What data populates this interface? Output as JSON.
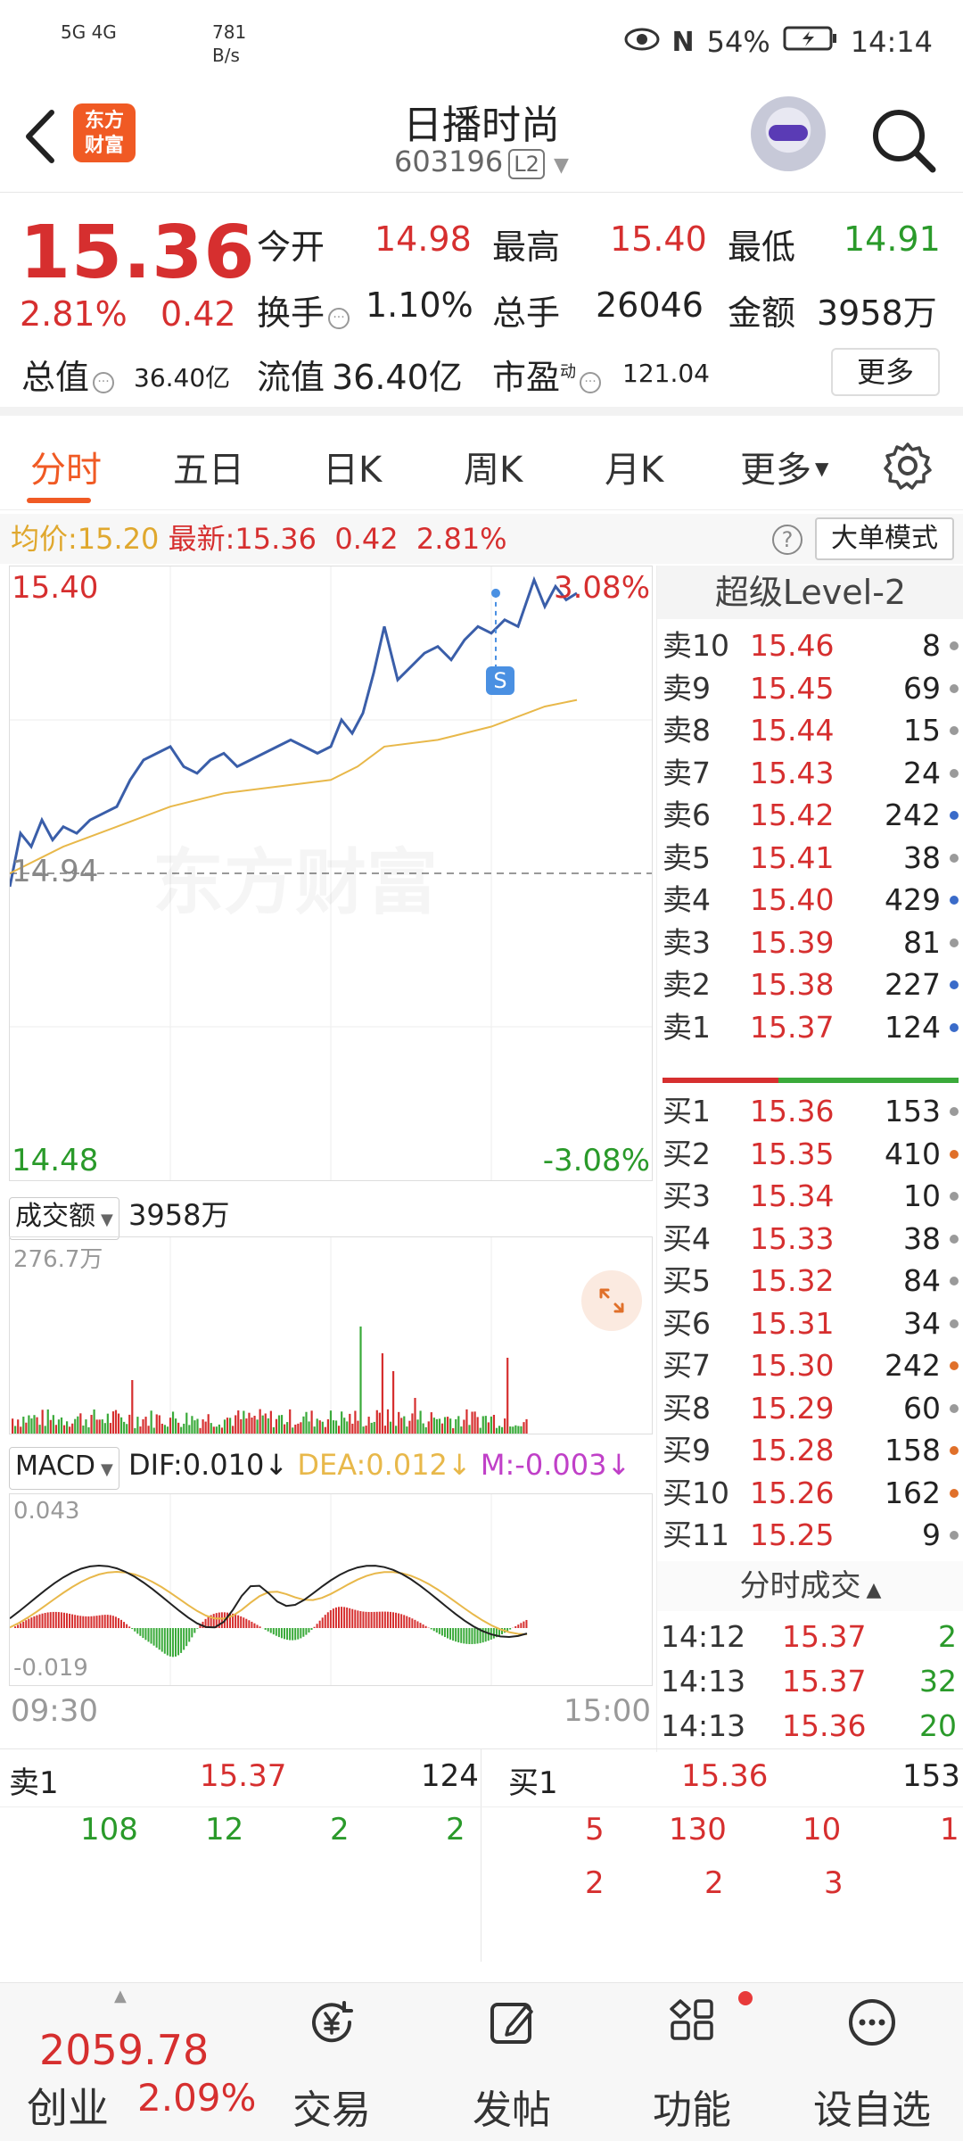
{
  "status_bar": {
    "net_speed": "781",
    "net_unit": "B/s",
    "net_types": "5G 4G",
    "battery": "54%",
    "time": "14:14"
  },
  "header": {
    "logo_text_1": "东方",
    "logo_text_2": "财富",
    "stock_name": "日播时尚",
    "stock_code": "603196",
    "level_badge": "L2"
  },
  "quote": {
    "price": "15.36",
    "change_pct": "2.81%",
    "change_val": "0.42",
    "open_label": "今开",
    "open": "14.98",
    "high_label": "最高",
    "high": "15.40",
    "low_label": "最低",
    "low": "14.91",
    "turnover_label": "换手",
    "turnover": "1.10%",
    "volume_label": "总手",
    "volume": "26046",
    "amount_label": "金额",
    "amount": "3958万",
    "mktcap_label": "总值",
    "mktcap": "36.40亿",
    "float_label": "流值",
    "float_cap": "36.40亿",
    "pe_label": "市盈",
    "pe_sup": "动",
    "pe": "121.04",
    "more_label": "更多"
  },
  "tabs": [
    {
      "label": "分时"
    },
    {
      "label": "五日"
    },
    {
      "label": "日K"
    },
    {
      "label": "周K"
    },
    {
      "label": "月K"
    },
    {
      "label": "更多"
    }
  ],
  "avg_row": {
    "avg_label": "均价:",
    "avg_value": "15.20",
    "latest_label": "最新:",
    "latest_value": "15.36",
    "latest_change": "0.42",
    "latest_pct": "2.81%",
    "help": "?",
    "big_order_label": "大单模式"
  },
  "chart": {
    "top_price": "15.40",
    "top_pct": "3.08%",
    "mid_price": "14.94",
    "bottom_price": "14.48",
    "bottom_pct": "-3.08%",
    "watermark": "东方财富",
    "marker": "S",
    "volume_dropdown": "成交额",
    "volume_total": "3958万",
    "volume_max": "276.7万",
    "macd_dropdown": "MACD",
    "dif": "DIF:0.010",
    "dea": "DEA:0.012",
    "m": "M:-0.003",
    "macd_top": "0.043",
    "macd_bottom": "-0.019",
    "time_start": "09:30",
    "time_end": "15:00"
  },
  "orderbook": {
    "title": "超级Level-2",
    "asks": [
      {
        "label": "卖10",
        "price": "15.46",
        "vol": "8",
        "dot": "#9a9a9a"
      },
      {
        "label": "卖9",
        "price": "15.45",
        "vol": "69",
        "dot": "#9a9a9a"
      },
      {
        "label": "卖8",
        "price": "15.44",
        "vol": "15",
        "dot": "#9a9a9a"
      },
      {
        "label": "卖7",
        "price": "15.43",
        "vol": "24",
        "dot": "#9a9a9a"
      },
      {
        "label": "卖6",
        "price": "15.42",
        "vol": "242",
        "dot": "#3a6bc9"
      },
      {
        "label": "卖5",
        "price": "15.41",
        "vol": "38",
        "dot": "#9a9a9a"
      },
      {
        "label": "卖4",
        "price": "15.40",
        "vol": "429",
        "dot": "#3a6bc9"
      },
      {
        "label": "卖3",
        "price": "15.39",
        "vol": "81",
        "dot": "#9a9a9a"
      },
      {
        "label": "卖2",
        "price": "15.38",
        "vol": "227",
        "dot": "#3a6bc9"
      },
      {
        "label": "卖1",
        "price": "15.37",
        "vol": "124",
        "dot": "#3a6bc9"
      }
    ],
    "bids": [
      {
        "label": "买1",
        "price": "15.36",
        "vol": "153",
        "dot": "#9a9a9a"
      },
      {
        "label": "买2",
        "price": "15.35",
        "vol": "410",
        "dot": "#e0702a"
      },
      {
        "label": "买3",
        "price": "15.34",
        "vol": "10",
        "dot": "#9a9a9a"
      },
      {
        "label": "买4",
        "price": "15.33",
        "vol": "38",
        "dot": "#9a9a9a"
      },
      {
        "label": "买5",
        "price": "15.32",
        "vol": "84",
        "dot": "#9a9a9a"
      },
      {
        "label": "买6",
        "price": "15.31",
        "vol": "34",
        "dot": "#9a9a9a"
      },
      {
        "label": "买7",
        "price": "15.30",
        "vol": "242",
        "dot": "#e0702a"
      },
      {
        "label": "买8",
        "price": "15.29",
        "vol": "60",
        "dot": "#9a9a9a"
      },
      {
        "label": "买9",
        "price": "15.28",
        "vol": "158",
        "dot": "#e0702a"
      },
      {
        "label": "买10",
        "price": "15.26",
        "vol": "162",
        "dot": "#e0702a"
      },
      {
        "label": "买11",
        "price": "15.25",
        "vol": "9",
        "dot": "#9a9a9a"
      }
    ],
    "ticks_title": "分时成交",
    "ticks": [
      {
        "time": "14:12",
        "price": "15.37",
        "vol": "2"
      },
      {
        "time": "14:13",
        "price": "15.37",
        "vol": "32"
      },
      {
        "time": "14:13",
        "price": "15.36",
        "vol": "20"
      }
    ]
  },
  "queue": {
    "sell_label": "卖1",
    "sell_price": "15.37",
    "sell_vol": "124",
    "buy_label": "买1",
    "buy_price": "15.36",
    "buy_vol": "153",
    "sell_orders": [
      "108",
      "12",
      "2",
      "2"
    ],
    "buy_orders_row1": [
      "5",
      "130",
      "10",
      "1"
    ],
    "buy_orders_row2": [
      "2",
      "2",
      "3"
    ]
  },
  "bottom_nav": {
    "index_value": "2059.78",
    "index_name": "创业",
    "index_pct": "2.09%",
    "items": [
      {
        "label": "交易",
        "icon": "yen-icon"
      },
      {
        "label": "发帖",
        "icon": "edit-icon"
      },
      {
        "label": "功能",
        "icon": "grid-icon"
      },
      {
        "label": "设自选",
        "icon": "more-dots-icon"
      }
    ]
  },
  "chart_data": {
    "type": "line",
    "x_range": [
      "09:30",
      "15:00"
    ],
    "ylim": [
      14.48,
      15.4
    ],
    "pct_range": [
      "-3.08%",
      "3.08%"
    ],
    "prev_close": 14.94,
    "series": [
      {
        "name": "",
        "color": "#3a5ea9",
        "x": [
          0,
          4,
          8,
          12,
          16,
          20,
          25,
          30,
          35,
          40,
          45,
          50,
          55,
          60,
          65,
          70,
          75,
          80,
          85,
          90,
          95,
          100,
          105,
          110,
          115,
          120,
          124,
          128,
          132,
          136,
          140,
          145,
          150,
          155,
          160,
          165,
          170,
          175,
          180,
          185,
          190,
          196,
          200,
          204,
          208,
          212
        ],
        "values": [
          14.92,
          15.0,
          14.98,
          15.02,
          14.99,
          15.01,
          15.0,
          15.02,
          15.03,
          15.04,
          15.08,
          15.11,
          15.12,
          15.13,
          15.1,
          15.09,
          15.11,
          15.12,
          15.1,
          15.11,
          15.12,
          15.13,
          15.14,
          15.13,
          15.12,
          15.13,
          15.17,
          15.15,
          15.18,
          15.24,
          15.31,
          15.23,
          15.25,
          15.27,
          15.28,
          15.26,
          15.29,
          15.31,
          15.3,
          15.32,
          15.31,
          15.38,
          15.34,
          15.37,
          15.35,
          15.36
        ]
      },
      {
        "name": "",
        "color": "#e8b84a",
        "x": [
          0,
          20,
          40,
          60,
          80,
          100,
          120,
          130,
          140,
          160,
          180,
          200,
          212
        ],
        "values": [
          14.94,
          14.98,
          15.01,
          15.04,
          15.06,
          15.07,
          15.08,
          15.1,
          15.13,
          15.14,
          15.16,
          15.19,
          15.2
        ]
      }
    ]
  }
}
